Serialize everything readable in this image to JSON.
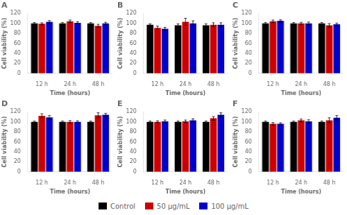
{
  "chart_data": [
    {
      "type": "bar",
      "title": "A",
      "xlabel": "Time (hours)",
      "ylabel": "Cell viability (%)",
      "categories": [
        "12 h",
        "24 h",
        "48 h"
      ],
      "series": [
        {
          "name": "Control",
          "color": "#000000",
          "values": [
            100,
            100,
            100
          ],
          "errors": [
            1.5,
            1.5,
            1.5
          ]
        },
        {
          "name": "50 μg/mL",
          "color": "#cc0000",
          "values": [
            99,
            104,
            95
          ],
          "errors": [
            2.0,
            2.5,
            3.0
          ]
        },
        {
          "name": "100 μg/mL",
          "color": "#0000cc",
          "values": [
            103,
            101,
            100
          ],
          "errors": [
            2.5,
            2.0,
            2.0
          ]
        }
      ],
      "ylim": [
        0,
        120
      ],
      "yticks": [
        0,
        20,
        40,
        60,
        80,
        100,
        120
      ],
      "grid": false,
      "legend": "bottom"
    },
    {
      "type": "bar",
      "title": "B",
      "xlabel": "Time (hours)",
      "ylabel": "Cell viability (%)",
      "categories": [
        "12 h",
        "24 h",
        "48 h"
      ],
      "series": [
        {
          "name": "Control",
          "color": "#000000",
          "values": [
            97,
            96,
            96
          ],
          "errors": [
            2.0,
            3.0,
            3.0
          ]
        },
        {
          "name": "50 μg/mL",
          "color": "#cc0000",
          "values": [
            91,
            103,
            97
          ],
          "errors": [
            3.5,
            7.0,
            4.0
          ]
        },
        {
          "name": "100 μg/mL",
          "color": "#0000cc",
          "values": [
            89,
            100,
            97
          ],
          "errors": [
            3.0,
            5.0,
            4.0
          ]
        }
      ],
      "ylim": [
        0,
        120
      ],
      "yticks": [
        0,
        20,
        40,
        60,
        80,
        100,
        120
      ],
      "grid": false,
      "legend": "bottom"
    },
    {
      "type": "bar",
      "title": "C",
      "xlabel": "Time (hours)",
      "ylabel": "Cell viability (%)",
      "categories": [
        "12 h",
        "24 h",
        "48 h"
      ],
      "series": [
        {
          "name": "Control",
          "color": "#000000",
          "values": [
            100,
            100,
            100
          ],
          "errors": [
            1.5,
            1.5,
            1.5
          ]
        },
        {
          "name": "50 μg/mL",
          "color": "#cc0000",
          "values": [
            104,
            100,
            96
          ],
          "errors": [
            2.5,
            2.0,
            3.5
          ]
        },
        {
          "name": "100 μg/mL",
          "color": "#0000cc",
          "values": [
            105,
            100,
            98
          ],
          "errors": [
            2.0,
            2.5,
            2.5
          ]
        }
      ],
      "ylim": [
        0,
        120
      ],
      "yticks": [
        0,
        20,
        40,
        60,
        80,
        100,
        120
      ],
      "grid": false,
      "legend": "bottom"
    },
    {
      "type": "bar",
      "title": "D",
      "xlabel": "Time (hours)",
      "ylabel": "Cell viability (%)",
      "categories": [
        "12 h",
        "24 h",
        "48 h"
      ],
      "series": [
        {
          "name": "Control",
          "color": "#000000",
          "values": [
            100,
            100,
            100
          ],
          "errors": [
            1.5,
            1.5,
            1.5
          ]
        },
        {
          "name": "50 μg/mL",
          "color": "#cc0000",
          "values": [
            112,
            100,
            113
          ],
          "errors": [
            4.0,
            2.5,
            5.0
          ]
        },
        {
          "name": "100 μg/mL",
          "color": "#0000cc",
          "values": [
            109,
            100,
            114
          ],
          "errors": [
            3.5,
            2.0,
            3.0
          ]
        }
      ],
      "ylim": [
        0,
        120
      ],
      "yticks": [
        0,
        20,
        40,
        60,
        80,
        100,
        120
      ],
      "grid": false,
      "legend": "bottom"
    },
    {
      "type": "bar",
      "title": "E",
      "xlabel": "Time (hours)",
      "ylabel": "Cell viability (%)",
      "categories": [
        "12 h",
        "24 h",
        "48 h"
      ],
      "series": [
        {
          "name": "Control",
          "color": "#000000",
          "values": [
            100,
            100,
            100
          ],
          "errors": [
            1.5,
            1.5,
            1.5
          ]
        },
        {
          "name": "50 μg/mL",
          "color": "#cc0000",
          "values": [
            100,
            101,
            107
          ],
          "errors": [
            2.0,
            2.5,
            3.5
          ]
        },
        {
          "name": "100 μg/mL",
          "color": "#0000cc",
          "values": [
            101,
            103,
            114
          ],
          "errors": [
            2.5,
            3.0,
            4.0
          ]
        }
      ],
      "ylim": [
        0,
        120
      ],
      "yticks": [
        0,
        20,
        40,
        60,
        80,
        100,
        120
      ],
      "grid": false,
      "legend": "bottom"
    },
    {
      "type": "bar",
      "title": "F",
      "xlabel": "Time (hours)",
      "ylabel": "Cell viability (%)",
      "categories": [
        "12 h",
        "24 h",
        "48 h"
      ],
      "series": [
        {
          "name": "Control",
          "color": "#000000",
          "values": [
            100,
            100,
            100
          ],
          "errors": [
            1.5,
            1.5,
            1.5
          ]
        },
        {
          "name": "50 μg/mL",
          "color": "#cc0000",
          "values": [
            96,
            103,
            103
          ],
          "errors": [
            2.5,
            2.5,
            5.0
          ]
        },
        {
          "name": "100 μg/mL",
          "color": "#0000cc",
          "values": [
            96,
            101,
            108
          ],
          "errors": [
            2.0,
            3.0,
            4.5
          ]
        }
      ],
      "ylim": [
        0,
        120
      ],
      "yticks": [
        0,
        20,
        40,
        60,
        80,
        100,
        120
      ],
      "grid": false,
      "legend": "bottom"
    }
  ]
}
